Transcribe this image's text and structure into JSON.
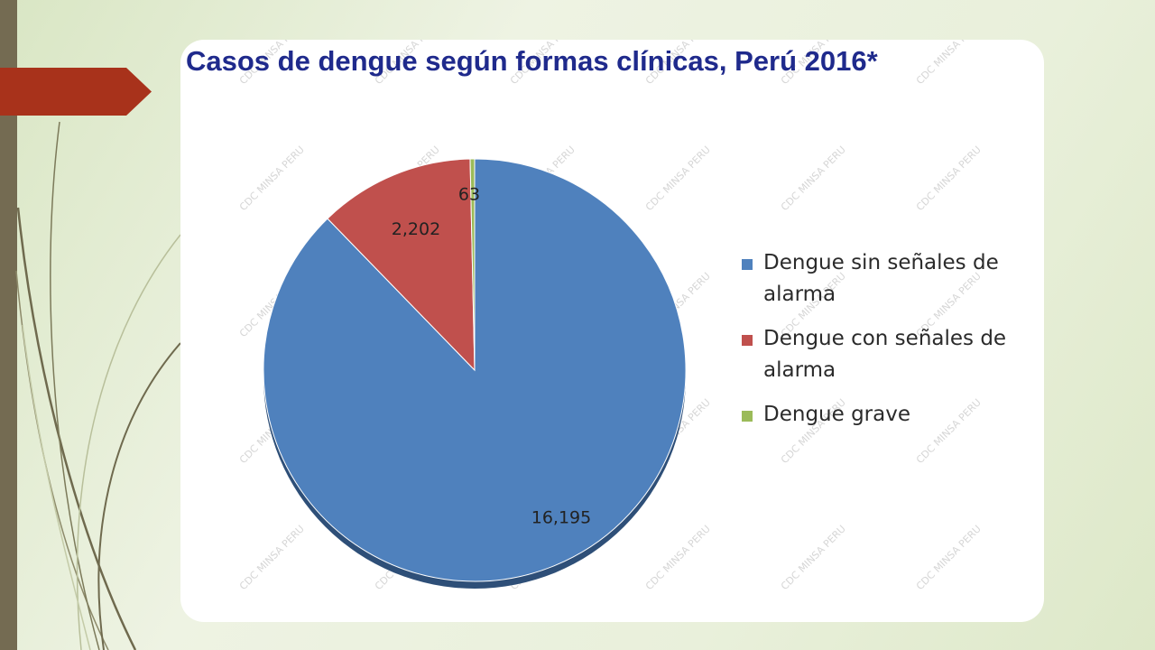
{
  "slide": {
    "accent_color": "#a8321b",
    "bar_color": "#746b52"
  },
  "watermark_text": "CDC MINSA PERU",
  "chart_data": {
    "type": "pie",
    "title": "Casos de dengue según formas clínicas, Perú 2016*",
    "categories": [
      "Dengue sin señales de alarma",
      "Dengue con señales de alarma",
      "Dengue grave"
    ],
    "values": [
      16195,
      2202,
      63
    ],
    "value_labels": [
      "16,195",
      "2,202",
      "63"
    ],
    "colors": [
      "#4f81bd",
      "#c0504d",
      "#9bbb59"
    ],
    "legend_position": "right"
  }
}
